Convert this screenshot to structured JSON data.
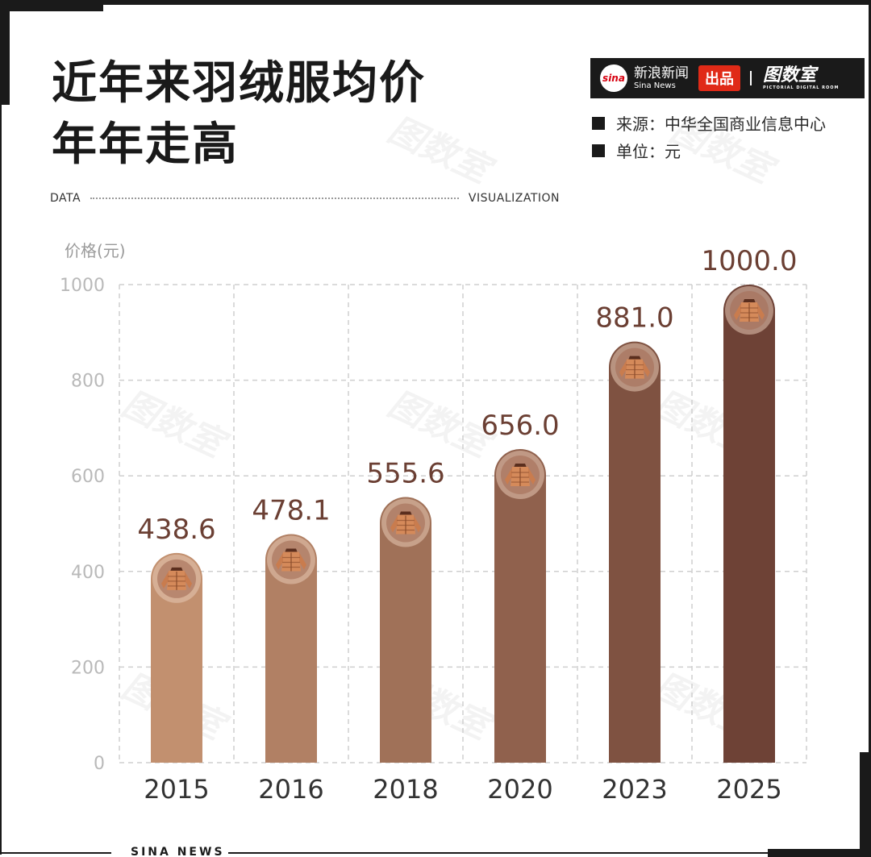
{
  "header": {
    "title_line1": "近年来羽绒服均价",
    "title_line2": "年年走高",
    "dv_left": "DATA",
    "dv_right": "VISUALIZATION"
  },
  "brand": {
    "logo_text": "sina",
    "name_cn": "新浪新闻",
    "name_en": "Sina News",
    "badge": "出品",
    "room_name": "图数室",
    "room_sub": "PICTORIAL DIGITAL ROOM"
  },
  "meta": {
    "source": "来源：中华全国商业信息中心",
    "unit": "单位：元"
  },
  "footer": {
    "label": "SINA NEWS"
  },
  "watermark_text": "图数室",
  "colors": {
    "bar_start": "#c2906f",
    "bar_end": "#6e4236",
    "value_text": "#6b3f33",
    "grid": "#cfcfcf",
    "tick_text": "#b9b9b9",
    "icon_circle": "#9a6d5a"
  },
  "chart_data": {
    "type": "bar",
    "categories": [
      "2015",
      "2016",
      "2018",
      "2020",
      "2023",
      "2025"
    ],
    "values": [
      438.6,
      478.1,
      555.6,
      656.0,
      881.0,
      1000.0
    ],
    "value_labels": [
      "438.6",
      "478.1",
      "555.6",
      "656.0",
      "881.0",
      "1000.0"
    ],
    "ylabel": "价格(元)",
    "ylim": [
      0,
      1000
    ],
    "yticks": [
      0,
      200,
      400,
      600,
      800,
      1000
    ],
    "grid": true,
    "bar_icon": "down-jacket-icon"
  }
}
